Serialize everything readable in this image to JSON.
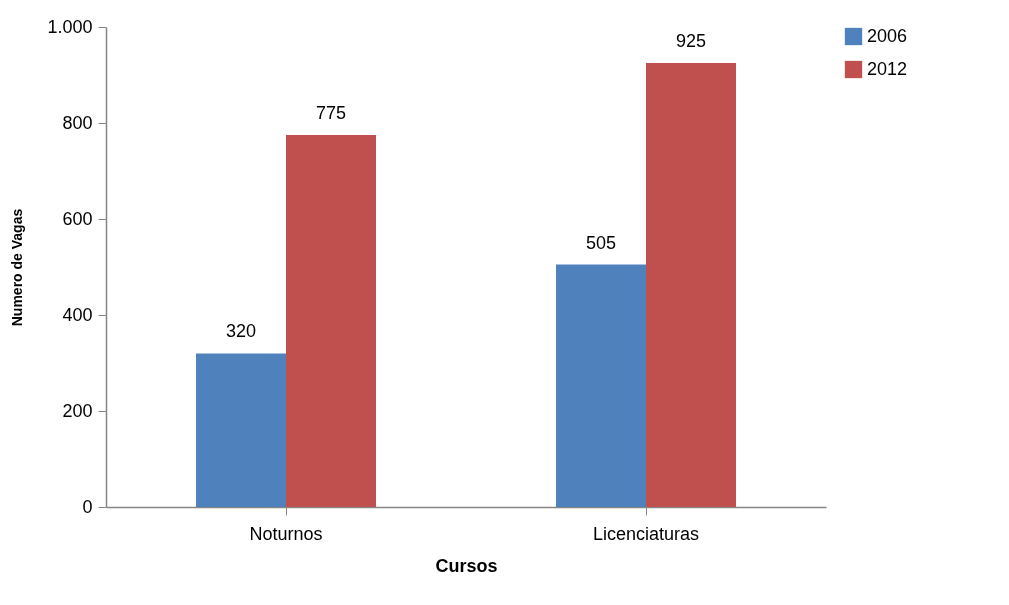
{
  "chart_data": {
    "type": "bar",
    "xlabel": "Cursos",
    "ylabel": "Numero de Vagas",
    "categories": [
      "Noturnos",
      "Licenciaturas"
    ],
    "series": [
      {
        "name": "2006",
        "color": "#4f81bd",
        "values": [
          320,
          505
        ]
      },
      {
        "name": "2012",
        "color": "#c0504d",
        "values": [
          775,
          925
        ]
      }
    ],
    "ylim": [
      0,
      1000
    ],
    "yticks": [
      0,
      200,
      400,
      600,
      800,
      {
        "value": 1000,
        "label": "1.000"
      }
    ],
    "grid": false,
    "legend": "right",
    "data_labels": true
  }
}
